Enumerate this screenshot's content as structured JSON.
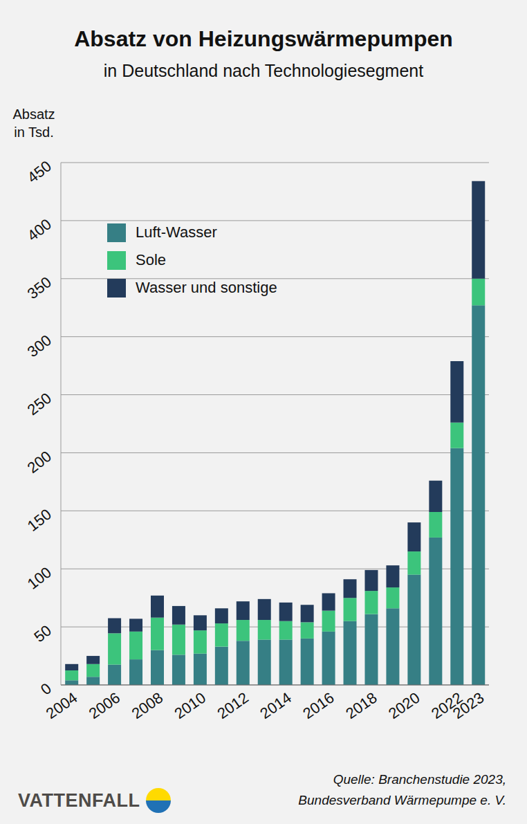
{
  "chart_data": {
    "type": "bar",
    "title": "Absatz von Heizungswärmepumpen",
    "subtitle": "in Deutschland nach Technologiesegment",
    "y_label": [
      "Absatz",
      "in Tsd."
    ],
    "categories": [
      "2004",
      null,
      "2006",
      null,
      "2008",
      null,
      "2010",
      null,
      "2012",
      null,
      "2014",
      null,
      "2016",
      null,
      "2018",
      null,
      "2020",
      null,
      "2022",
      "2023"
    ],
    "series": [
      {
        "name": "Luft-Wasser",
        "color": "#367f85",
        "values": [
          4,
          7,
          17.5,
          22,
          30,
          26,
          27,
          33,
          38,
          39,
          39,
          40,
          46,
          55,
          61,
          66,
          95,
          127,
          204,
          327
        ]
      },
      {
        "name": "Sole",
        "color": "#3cc47c",
        "values": [
          8.5,
          11,
          27,
          24,
          28,
          26,
          20,
          20,
          18,
          17,
          16,
          14,
          18,
          20,
          20,
          18,
          20,
          22,
          22,
          23
        ]
      },
      {
        "name": "Wasser und sonstige",
        "color": "#233b5b",
        "values": [
          5.5,
          7,
          13,
          11,
          19,
          16,
          13,
          13,
          16,
          18,
          16,
          15,
          15,
          16,
          18,
          19,
          25,
          27,
          53,
          84
        ]
      }
    ],
    "ylim": [
      0,
      450
    ],
    "yticks": [
      0,
      50,
      100,
      150,
      200,
      250,
      300,
      350,
      400,
      450
    ],
    "grid": true,
    "stacked": true,
    "legend": "upper left",
    "source": [
      "Quelle: Branchenstudie 2023,",
      "Bundesverband Wärmepumpe e. V."
    ],
    "brand": "VATTENFALL"
  }
}
